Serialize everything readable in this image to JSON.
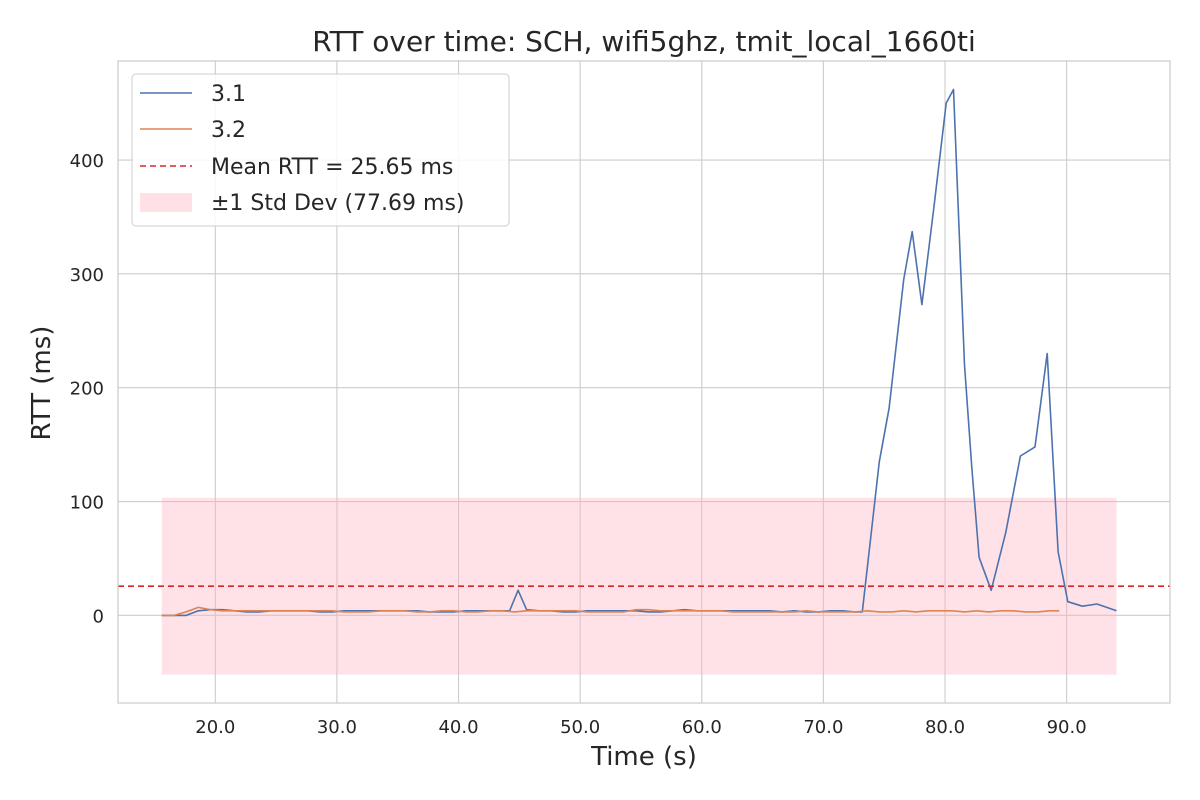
{
  "chart_data": {
    "type": "line",
    "title": "RTT over time: SCH, wifi5ghz, tmit_local_1660ti",
    "xlabel": "Time (s)",
    "ylabel": "RTT (ms)",
    "xlim": [
      12,
      98.5
    ],
    "ylim": [
      -77,
      487
    ],
    "xticks": [
      20,
      30,
      40,
      50,
      60,
      70,
      80,
      90
    ],
    "xtick_labels": [
      "20.0",
      "30.0",
      "40.0",
      "50.0",
      "60.0",
      "70.0",
      "80.0",
      "90.0"
    ],
    "yticks": [
      0,
      100,
      200,
      300,
      400
    ],
    "ytick_labels": [
      "0",
      "100",
      "200",
      "300",
      "400"
    ],
    "grid": true,
    "legend_position": "top-left",
    "mean": {
      "label": "Mean RTT = 25.65 ms",
      "value": 25.65,
      "color": "#d62728"
    },
    "std_band": {
      "label": "±1 Std Dev (77.69 ms)",
      "low": -52.04,
      "high": 103.34,
      "x_start": 15.6,
      "x_end": 94.1,
      "color": "#ffb3bf"
    },
    "series": [
      {
        "name": "3.1",
        "color": "#4c72b0",
        "x": [
          15.6,
          16.6,
          17.6,
          18.6,
          19.6,
          20.6,
          21.6,
          22.6,
          23.6,
          24.6,
          25.6,
          26.6,
          27.6,
          28.6,
          29.6,
          30.6,
          31.6,
          32.6,
          33.6,
          34.6,
          35.6,
          36.6,
          37.6,
          38.6,
          39.6,
          40.6,
          41.6,
          42.6,
          43.6,
          44.2,
          44.9,
          45.6,
          46.6,
          47.6,
          48.6,
          49.6,
          50.6,
          51.6,
          52.6,
          53.6,
          54.6,
          55.6,
          56.6,
          57.6,
          58.6,
          59.6,
          60.6,
          61.6,
          62.6,
          63.6,
          64.6,
          65.6,
          66.6,
          67.6,
          68.6,
          69.6,
          70.6,
          71.6,
          72.6,
          73.2,
          74.6,
          75.4,
          76.6,
          77.3,
          78.1,
          79.1,
          80.1,
          80.7,
          81.6,
          82.2,
          82.8,
          83.8,
          85.0,
          86.2,
          87.4,
          88.4,
          89.3,
          90.1,
          91.3,
          92.5,
          94.1
        ],
        "y": [
          0,
          0,
          0,
          4,
          5,
          5,
          4,
          3,
          3,
          4,
          4,
          4,
          4,
          3,
          3,
          4,
          4,
          4,
          4,
          4,
          4,
          4,
          3,
          3,
          3,
          4,
          4,
          4,
          4,
          4,
          22,
          5,
          4,
          4,
          3,
          3,
          4,
          4,
          4,
          4,
          4,
          3,
          3,
          4,
          5,
          4,
          4,
          4,
          4,
          4,
          4,
          4,
          3,
          4,
          3,
          3,
          4,
          4,
          3,
          3,
          135,
          182,
          295,
          337,
          273,
          360,
          450,
          462,
          220,
          130,
          51,
          22,
          73,
          140,
          148,
          230,
          56,
          12,
          8,
          10,
          4
        ]
      },
      {
        "name": "3.2",
        "color": "#dd8452",
        "x": [
          15.6,
          16.6,
          17.6,
          18.6,
          19.6,
          20.6,
          21.6,
          22.6,
          23.6,
          24.6,
          25.6,
          26.6,
          27.6,
          28.6,
          29.6,
          30.6,
          31.6,
          32.6,
          33.6,
          34.6,
          35.6,
          36.6,
          37.6,
          38.6,
          39.6,
          40.6,
          41.6,
          42.6,
          43.6,
          44.6,
          45.6,
          46.6,
          47.6,
          48.6,
          49.6,
          50.6,
          51.6,
          52.6,
          53.6,
          54.6,
          55.6,
          56.6,
          57.6,
          58.6,
          59.6,
          60.6,
          61.6,
          62.6,
          63.6,
          64.6,
          65.6,
          66.6,
          67.6,
          68.6,
          69.6,
          70.6,
          71.6,
          72.6,
          73.6,
          74.6,
          75.6,
          76.6,
          77.6,
          78.6,
          79.6,
          80.6,
          81.6,
          82.6,
          83.6,
          84.6,
          85.6,
          86.6,
          87.6,
          88.6,
          89.4
        ],
        "y": [
          0,
          0,
          3,
          7,
          5,
          4,
          4,
          4,
          4,
          4,
          4,
          4,
          4,
          4,
          4,
          3,
          3,
          3,
          4,
          4,
          4,
          3,
          3,
          4,
          4,
          3,
          3,
          4,
          4,
          3,
          4,
          4,
          4,
          4,
          4,
          3,
          3,
          3,
          3,
          5,
          5,
          4,
          4,
          4,
          4,
          4,
          4,
          3,
          3,
          3,
          3,
          3,
          3,
          4,
          3,
          3,
          3,
          3,
          4,
          3,
          3,
          4,
          3,
          4,
          4,
          4,
          3,
          4,
          3,
          4,
          4,
          3,
          3,
          4,
          4
        ]
      }
    ]
  }
}
